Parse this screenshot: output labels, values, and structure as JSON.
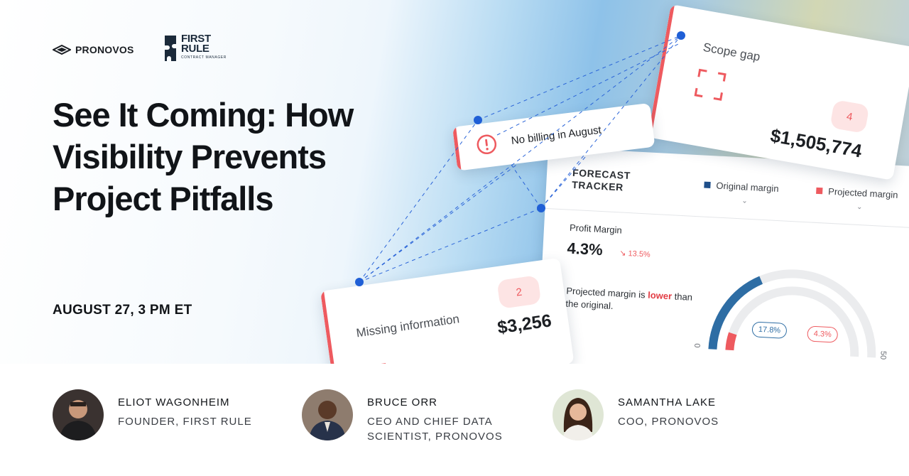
{
  "logos": {
    "pronovos": "PRONOVOS",
    "firstrule_line1": "FIRST",
    "firstrule_line2": "RULE",
    "firstrule_sub": "CONTRACT MANAGER"
  },
  "headline": "See It Coming: How Visibility Prevents Project Pitfalls",
  "event_date": "AUGUST 27, 3 PM ET",
  "cards": {
    "scope_gap": {
      "title": "Scope gap",
      "count": "4",
      "amount": "$1,505,774"
    },
    "no_billing": {
      "title": "No billing in August"
    },
    "missing_info": {
      "title": "Missing information",
      "count": "2",
      "amount": "$3,256"
    },
    "forecast": {
      "title": "FORECAST TRACKER",
      "legend_original": "Original margin",
      "legend_projected": "Projected margin",
      "profit_margin_label": "Profit Margin",
      "profit_margin_value": "4.3%",
      "profit_margin_delta": "13.5%",
      "note_prefix": "Projected margin is",
      "note_lower": "lower",
      "note_suffix": "than the original.",
      "original_pct": "17.8%",
      "projected_pct": "4.3%",
      "axis_min": "0",
      "axis_max": "50",
      "original_value": 17.8,
      "projected_value": 4.3,
      "gauge_max": 50
    }
  },
  "colors": {
    "accent_red": "#ee5a5f",
    "accent_blue": "#2e6da4",
    "connector_blue": "#1f5fd6"
  },
  "speakers": [
    {
      "name": "ELIOT WAGONHEIM",
      "role_line1": "FOUNDER, FIRST RULE",
      "role_line2": ""
    },
    {
      "name": "BRUCE ORR",
      "role_line1": "CEO AND CHIEF DATA",
      "role_line2": "SCIENTIST, PRONOVOS"
    },
    {
      "name": "SAMANTHA LAKE",
      "role_line1": "COO, PRONOVOS",
      "role_line2": ""
    }
  ]
}
